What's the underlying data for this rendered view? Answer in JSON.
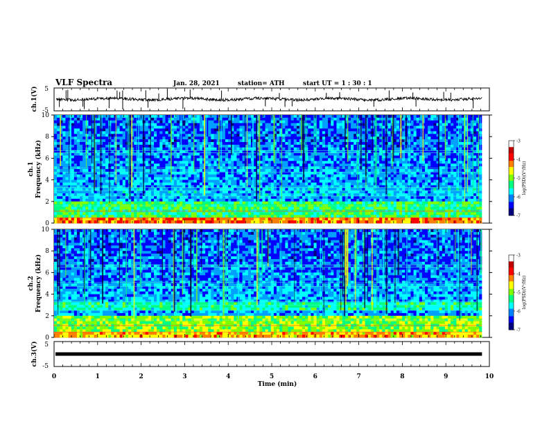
{
  "header": {
    "title": "VLF Spectra",
    "date": "Jan. 28, 2021",
    "station": "station= ATH",
    "start": "start  UT =   1 : 30 : 1"
  },
  "chart_data": [
    {
      "type": "line",
      "panel": "ch1-waveform",
      "ylabel": "ch.1(V)",
      "ylim": [
        -5,
        5
      ],
      "yticks": [
        5,
        -5
      ],
      "xlim": [
        0,
        10
      ],
      "baseline": 0,
      "color": "#000000"
    },
    {
      "type": "heatmap",
      "panel": "ch1-spectrogram",
      "ylabel": "ch.1",
      "ylabel2": "Frequency (kHz)",
      "ylim": [
        0,
        10
      ],
      "yticks": [
        0,
        2,
        4,
        6,
        8,
        10
      ],
      "xlim": [
        0,
        9.83
      ],
      "colorbar": {
        "label": "log(PSD)(V²/Hz)",
        "ticks": [
          -3,
          -4,
          -5,
          -6,
          -7
        ],
        "range": [
          -7,
          -3
        ],
        "colors": [
          "#00007f",
          "#0000ff",
          "#00a0ff",
          "#00ffff",
          "#00ff80",
          "#80ff00",
          "#ffff00",
          "#ff8000",
          "#ff0000",
          "#b00000",
          "#ffffff"
        ]
      }
    },
    {
      "type": "heatmap",
      "panel": "ch2-spectrogram",
      "ylabel": "ch.2",
      "ylabel2": "Frequency (kHz)",
      "ylim": [
        0,
        10
      ],
      "yticks": [
        0,
        2,
        4,
        6,
        8,
        10
      ],
      "xlim": [
        0,
        9.83
      ],
      "colorbar": {
        "label": "log(PSD)(V²/Hz)",
        "ticks": [
          -3,
          -4,
          -5,
          -6,
          -7
        ],
        "range": [
          -7,
          -3
        ],
        "colors": [
          "#00007f",
          "#0000ff",
          "#00a0ff",
          "#00ffff",
          "#00ff80",
          "#80ff00",
          "#ffff00",
          "#ff8000",
          "#ff0000",
          "#b00000",
          "#ffffff"
        ]
      }
    },
    {
      "type": "line",
      "panel": "ch3-waveform",
      "ylabel": "ch.3(V)",
      "ylim": [
        -5,
        5
      ],
      "yticks": [
        5,
        -5
      ],
      "xlim": [
        0,
        10
      ],
      "baseline": 0,
      "color": "#000000"
    }
  ],
  "xaxis": {
    "label": "Time  (min)",
    "ticks": [
      "0",
      "1",
      "2",
      "3",
      "4",
      "5",
      "6",
      "7",
      "8",
      "9",
      "10"
    ]
  }
}
